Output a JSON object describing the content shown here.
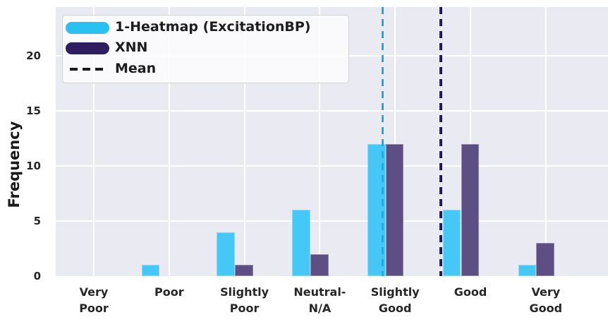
{
  "figure": {
    "background": "#FFFFFF",
    "plot_background": "#EAEAF2",
    "grid_color": "#FFFFFF"
  },
  "chart_data": {
    "type": "bar",
    "title": "",
    "xlabel": "",
    "ylabel": "Frequency",
    "categories": [
      "Very\nPoor",
      "Poor",
      "Slightly\nPoor",
      "Neutral-\nN/A",
      "Slightly\nGood",
      "Good",
      "Very\nGood"
    ],
    "series": [
      {
        "name": "1-Heatmap (ExcitationBP)",
        "values": [
          0,
          1,
          4,
          6,
          12,
          6,
          1
        ],
        "bar_color": "#45C8F5",
        "legend_color": "#29C0F2",
        "mean_line": {
          "x_index": 3.834,
          "color": "#1CABE2",
          "style": "dashed"
        }
      },
      {
        "name": "XNN",
        "values": [
          0,
          0,
          1,
          2,
          12,
          12,
          3
        ],
        "bar_color": "#5D4E84",
        "legend_color": "#2E1D5F",
        "mean_line": {
          "x_index": 4.607,
          "color": "#29195E",
          "style": "dashed"
        }
      }
    ],
    "legend": {
      "entries": [
        "1-Heatmap (ExcitationBP)",
        "XNN",
        "Mean"
      ],
      "position": "upper left",
      "mean_label": "Mean",
      "mean_dash_color": "#1B1B1B"
    },
    "yticks": [
      0,
      5,
      10,
      15,
      20
    ],
    "ylim": [
      0,
      24.4
    ],
    "grid": true
  }
}
